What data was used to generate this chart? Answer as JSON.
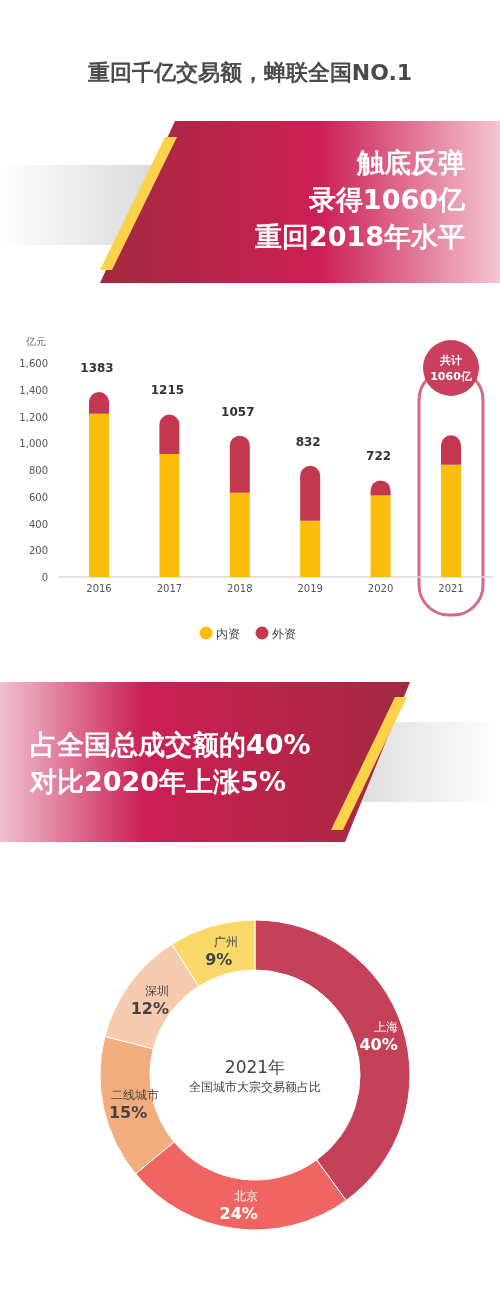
{
  "chart_data": [
    {
      "type": "bar",
      "title": "重回千亿交易额，蝉联全国NO.1",
      "subtitle": "触底反弹",
      "ylabel": "亿元",
      "stacked": true,
      "categories": [
        "2016",
        "2017",
        "2018",
        "2019",
        "2020",
        "2021"
      ],
      "series": [
        {
          "name": "内资",
          "color": "#fbbd0b",
          "values": [
            1220,
            920,
            630,
            420,
            610,
            840
          ]
        },
        {
          "name": "外资",
          "color": "#c4384f",
          "values": [
            163,
            295,
            427,
            412,
            112,
            220
          ]
        }
      ],
      "ylim": [
        0,
        1600
      ],
      "yticks": [
        0,
        {
          "value": 200,
          "label": "200"
        },
        {
          "value": 400,
          "label": "400"
        },
        {
          "value": 600,
          "label": "600"
        },
        {
          "value": 800,
          "label": "800"
        },
        {
          "value": 1000,
          "label": "1,000"
        },
        {
          "value": 1200,
          "label": "1,200"
        },
        {
          "value": 1400,
          "label": "1,400"
        },
        {
          "value": 1600,
          "label": "1,600"
        }
      ],
      "totals": [
        "1383",
        "1215",
        "1057",
        "832",
        "722",
        null
      ],
      "annotations": [
        "录得1060亿",
        "重回2018年水平",
        "共计",
        "1060亿"
      ],
      "legend": "bottom",
      "grid": false
    },
    {
      "type": "donut",
      "title": "2021年",
      "subtitle": "全国城市大宗交易额占比",
      "annotations": [
        "占全国总成交额的40%",
        "对比2020年上涨5%"
      ],
      "categories": [
        "上海",
        "北京",
        "二线城市",
        "深圳",
        "广州"
      ],
      "values": [
        40,
        24,
        15,
        12,
        9
      ],
      "colors": [
        "#c4415a",
        "#f06562",
        "#f1ad7d",
        "#f6cbb0",
        "#fbd86a"
      ],
      "value_labels": [
        "40%",
        "24%",
        "15%",
        "12%",
        "9%"
      ]
    }
  ]
}
